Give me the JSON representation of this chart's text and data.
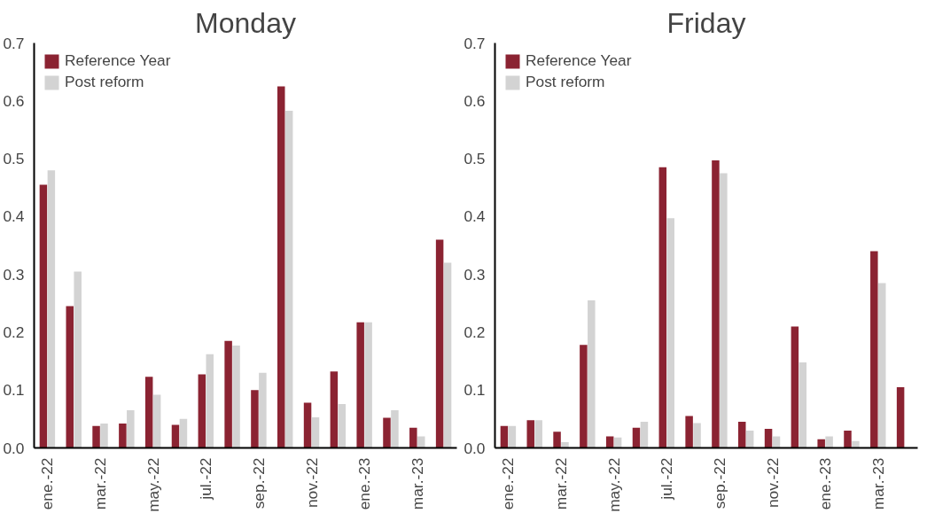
{
  "chart_data": [
    {
      "type": "bar",
      "title": "Monday",
      "categories": [
        "ene.-22",
        null,
        "mar.-22",
        null,
        "may.-22",
        null,
        "jul.-22",
        null,
        "sep.-22",
        null,
        "nov.-22",
        null,
        "ene.-23",
        null,
        "mar.-23",
        null
      ],
      "series": [
        {
          "name": "Reference Year",
          "color": "#8b2332",
          "values": [
            0.455,
            0.245,
            0.038,
            0.042,
            0.123,
            0.04,
            0.127,
            0.185,
            0.1,
            0.625,
            0.078,
            0.132,
            0.217,
            0.052,
            0.035,
            0.36
          ]
        },
        {
          "name": "Post reform",
          "color": "#d3d3d3",
          "values": [
            0.48,
            0.305,
            0.042,
            0.065,
            0.092,
            0.05,
            0.162,
            0.177,
            0.13,
            0.583,
            0.053,
            0.076,
            0.217,
            0.065,
            0.02,
            0.32
          ]
        }
      ],
      "ylim": [
        0,
        0.7
      ],
      "yticks": [
        {
          "value": 0,
          "label": "0.0"
        },
        0.1,
        0.2,
        0.3,
        0.4,
        0.5,
        0.6,
        0.7
      ],
      "grid": false,
      "legend": "top left"
    },
    {
      "type": "bar",
      "title": "Friday",
      "categories": [
        "ene.-22",
        null,
        "mar.-22",
        null,
        "may.-22",
        null,
        "jul.-22",
        null,
        "sep.-22",
        null,
        "nov.-22",
        null,
        "ene.-23",
        null,
        "mar.-23",
        null
      ],
      "series": [
        {
          "name": "Reference Year",
          "color": "#8b2332",
          "values": [
            0.038,
            0.048,
            0.028,
            0.178,
            0.02,
            0.035,
            0.485,
            0.055,
            0.497,
            0.045,
            0.033,
            0.21,
            0.015,
            0.03,
            0.34,
            0.105
          ]
        },
        {
          "name": "Post reform",
          "color": "#d3d3d3",
          "values": [
            0.038,
            0.048,
            0.01,
            0.255,
            0.018,
            0.045,
            0.397,
            0.043,
            0.475,
            0.03,
            0.02,
            0.148,
            0.02,
            0.012,
            0.285,
            null
          ]
        }
      ],
      "ylim": [
        0,
        0.7
      ],
      "yticks": [
        {
          "value": 0,
          "label": "0.0"
        },
        0.1,
        0.2,
        0.3,
        0.4,
        0.5,
        0.6,
        0.7
      ],
      "grid": false,
      "legend": "top left"
    }
  ]
}
